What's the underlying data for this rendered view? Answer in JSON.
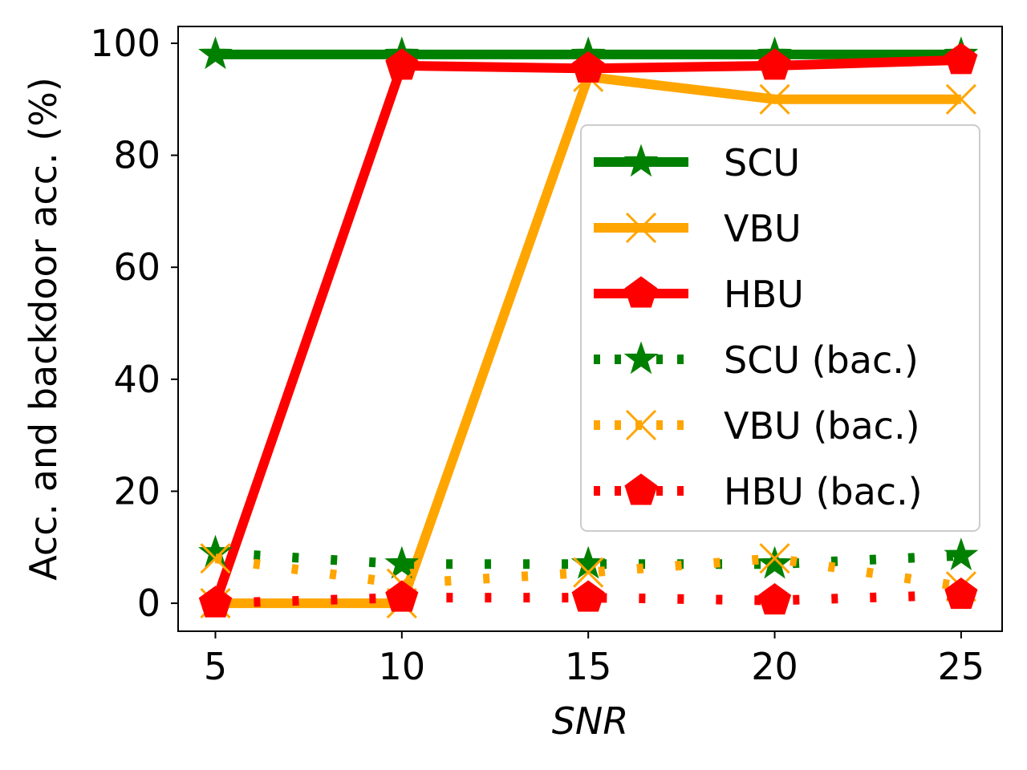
{
  "chart_data": {
    "type": "line",
    "xlabel": "SNR",
    "ylabel": "Acc. and backdoor acc. (%)",
    "x": [
      5,
      10,
      15,
      20,
      25
    ],
    "xticks": [
      "5",
      "10",
      "15",
      "20",
      "25"
    ],
    "yticks": [
      "0",
      "20",
      "40",
      "60",
      "80",
      "100"
    ],
    "xlim": [
      4,
      26.1
    ],
    "ylim": [
      -5,
      103
    ],
    "grid": false,
    "legend_position": "center-right",
    "series": [
      {
        "name": "SCU",
        "values": [
          98,
          98,
          98,
          98,
          98
        ],
        "color": "#008000",
        "dash": "solid",
        "marker": "star"
      },
      {
        "name": "VBU",
        "values": [
          0,
          0,
          94,
          90,
          90
        ],
        "color": "#ffa500",
        "dash": "solid",
        "marker": "x"
      },
      {
        "name": "HBU",
        "values": [
          0,
          96,
          95.5,
          96,
          97
        ],
        "color": "#ff0000",
        "dash": "solid",
        "marker": "pentagon"
      },
      {
        "name": "SCU (bac.)",
        "values": [
          9,
          7,
          7,
          7,
          8.5
        ],
        "color": "#008000",
        "dash": "dotted",
        "marker": "star"
      },
      {
        "name": "VBU (bac.)",
        "values": [
          8,
          3.5,
          5.5,
          8,
          3
        ],
        "color": "#ffa500",
        "dash": "dotted",
        "marker": "x"
      },
      {
        "name": "HBU (bac.)",
        "values": [
          0,
          1,
          1,
          0.5,
          1.5
        ],
        "color": "#ff0000",
        "dash": "dotted",
        "marker": "pentagon"
      }
    ]
  }
}
